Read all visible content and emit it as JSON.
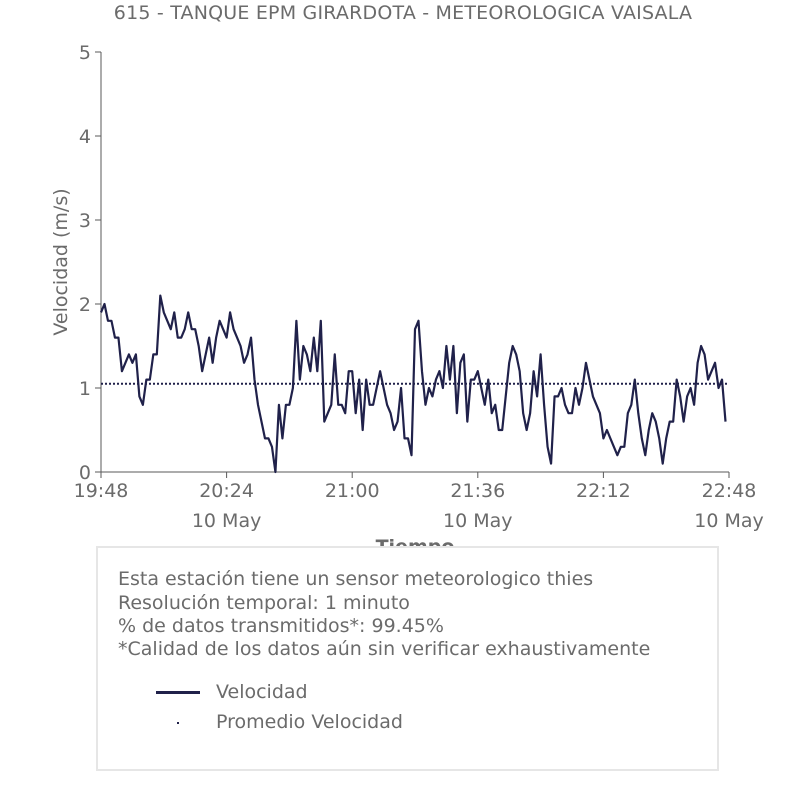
{
  "chart_data": {
    "type": "line",
    "title": "615 - TANQUE EPM GIRARDOTA - METEOROLOGICA VAISALA",
    "xlabel": "Tiempo",
    "ylabel": "Velocidad (m/s)",
    "ylim": [
      0,
      5
    ],
    "yticks": [
      "0",
      "1",
      "2",
      "3",
      "4",
      "5"
    ],
    "xlim": [
      "19:48",
      "22:48"
    ],
    "xticks": [
      {
        "time": "19:48",
        "date": ""
      },
      {
        "time": "20:24",
        "date": "10 May"
      },
      {
        "time": "21:00",
        "date": ""
      },
      {
        "time": "21:36",
        "date": "10 May"
      },
      {
        "time": "22:12",
        "date": ""
      },
      {
        "time": "22:48",
        "date": "10 May"
      }
    ],
    "grid": false,
    "series": [
      {
        "name": "Velocidad",
        "color": "#20214a",
        "style": "solid",
        "start_time": "19:48",
        "step_minutes": 1,
        "values": [
          1.9,
          2.0,
          1.8,
          1.8,
          1.6,
          1.6,
          1.2,
          1.3,
          1.4,
          1.3,
          1.4,
          0.9,
          0.8,
          1.1,
          1.1,
          1.4,
          1.4,
          2.1,
          1.9,
          1.8,
          1.7,
          1.9,
          1.6,
          1.6,
          1.7,
          1.9,
          1.7,
          1.7,
          1.5,
          1.2,
          1.4,
          1.6,
          1.3,
          1.6,
          1.8,
          1.7,
          1.6,
          1.9,
          1.7,
          1.6,
          1.5,
          1.3,
          1.4,
          1.6,
          1.1,
          0.8,
          0.6,
          0.4,
          0.4,
          0.3,
          0.0,
          0.8,
          0.4,
          0.8,
          0.8,
          1.0,
          1.8,
          1.1,
          1.5,
          1.4,
          1.2,
          1.6,
          1.2,
          1.8,
          0.6,
          0.7,
          0.8,
          1.4,
          0.8,
          0.8,
          0.7,
          1.2,
          1.2,
          0.7,
          1.1,
          0.5,
          1.1,
          0.8,
          0.8,
          1.0,
          1.2,
          1.0,
          0.8,
          0.7,
          0.5,
          0.6,
          1.0,
          0.4,
          0.4,
          0.2,
          1.7,
          1.8,
          1.2,
          0.8,
          1.0,
          0.9,
          1.1,
          1.2,
          1.0,
          1.5,
          1.1,
          1.5,
          0.7,
          1.3,
          1.4,
          0.6,
          1.1,
          1.1,
          1.2,
          1.0,
          0.8,
          1.1,
          0.7,
          0.8,
          0.5,
          0.5,
          0.9,
          1.3,
          1.5,
          1.4,
          1.2,
          0.7,
          0.5,
          0.7,
          1.2,
          0.9,
          1.4,
          0.8,
          0.3,
          0.1,
          0.9,
          0.9,
          1.0,
          0.8,
          0.7,
          0.7,
          1.0,
          0.8,
          1.0,
          1.3,
          1.1,
          0.9,
          0.8,
          0.7,
          0.4,
          0.5,
          0.4,
          0.3,
          0.2,
          0.3,
          0.3,
          0.7,
          0.8,
          1.1,
          0.7,
          0.4,
          0.2,
          0.5,
          0.7,
          0.6,
          0.4,
          0.1,
          0.4,
          0.6,
          0.6,
          1.1,
          0.9,
          0.6,
          0.9,
          1.0,
          0.8,
          1.3,
          1.5,
          1.4,
          1.1,
          1.2,
          1.3,
          1.0,
          1.1,
          0.6
        ]
      },
      {
        "name": "Promedio Velocidad",
        "color": "#20214a",
        "style": "dotted",
        "value": 1.05
      }
    ]
  },
  "info": {
    "lines": [
      "Esta estación tiene un sensor meteorologico thies",
      "Resolución temporal: 1 minuto",
      "% de datos transmitidos*: 99.45%",
      "*Calidad de los datos aún sin verificar exhaustivamente"
    ],
    "legend": {
      "line_label": "Velocidad",
      "avg_label": "Promedio Velocidad"
    }
  }
}
